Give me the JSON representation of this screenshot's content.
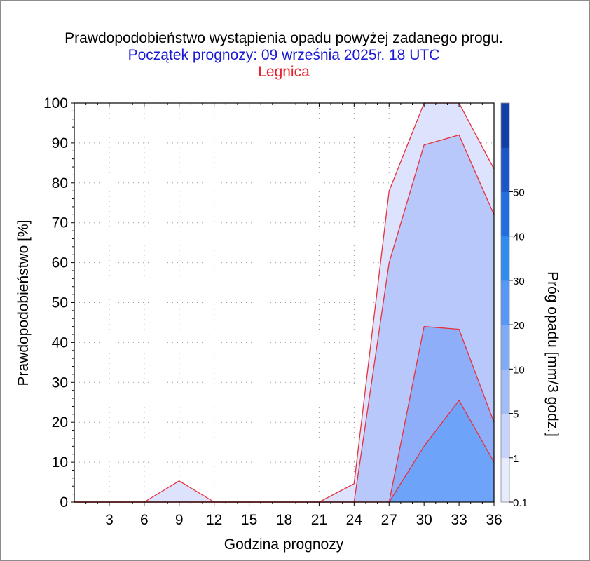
{
  "chart_data": {
    "type": "area",
    "title": "Prawdopodobieństwo wystąpienia opadu powyżej zadanego progu.",
    "subtitle": "Początek prognozy: 09 września 2025r. 18 UTC",
    "location": "Legnica",
    "xlabel": "Godzina prognozy",
    "ylabel": "Prawdopodobieństwo [%]",
    "colorbar_label": "Próg opadu [mm/3 godz.]",
    "xlim": [
      0,
      36
    ],
    "ylim": [
      0,
      100
    ],
    "x_ticks": [
      3,
      6,
      9,
      12,
      15,
      18,
      21,
      24,
      27,
      30,
      33,
      36
    ],
    "y_ticks": [
      0,
      10,
      20,
      30,
      40,
      50,
      60,
      70,
      80,
      90,
      100
    ],
    "grid": true,
    "x": [
      0,
      3,
      6,
      9,
      12,
      15,
      18,
      21,
      24,
      27,
      30,
      33,
      36
    ],
    "series": [
      {
        "name": "0.1",
        "color": "#dde3fc",
        "values": [
          0,
          0,
          0,
          5.3,
          0,
          0,
          0,
          0,
          4.6,
          78,
          100,
          100,
          83.5
        ]
      },
      {
        "name": "1",
        "color": "#b8c8fb",
        "values": [
          0,
          0,
          0,
          0,
          0,
          0,
          0,
          0,
          0,
          60,
          89.5,
          92,
          72
        ]
      },
      {
        "name": "5",
        "color": "#8faefa",
        "values": [
          0,
          0,
          0,
          0,
          0,
          0,
          0,
          0,
          0,
          0,
          44,
          43.3,
          20
        ]
      },
      {
        "name": "10",
        "color": "#6ea3fa",
        "values": [
          0,
          0,
          0,
          0,
          0,
          0,
          0,
          0,
          0,
          0,
          14,
          25.5,
          10
        ]
      }
    ],
    "outline_color": "#e8303a",
    "colorbar": {
      "tick_labels": [
        "0.1",
        "1",
        "5",
        "10",
        "20",
        "30",
        "40",
        "50"
      ],
      "bands": [
        {
          "label": "0.1",
          "color": "#e6ebfd"
        },
        {
          "label": "1",
          "color": "#c6d3fc"
        },
        {
          "label": "5",
          "color": "#a2bcfa"
        },
        {
          "label": "10",
          "color": "#7fabf9"
        },
        {
          "label": "20",
          "color": "#5598f7"
        },
        {
          "label": "30",
          "color": "#2f8cf3"
        },
        {
          "label": "40",
          "color": "#1f6fe3"
        },
        {
          "label": "50",
          "color": "#1a56c9"
        },
        {
          "label": ">50",
          "color": "#0f3fa8"
        }
      ]
    }
  }
}
